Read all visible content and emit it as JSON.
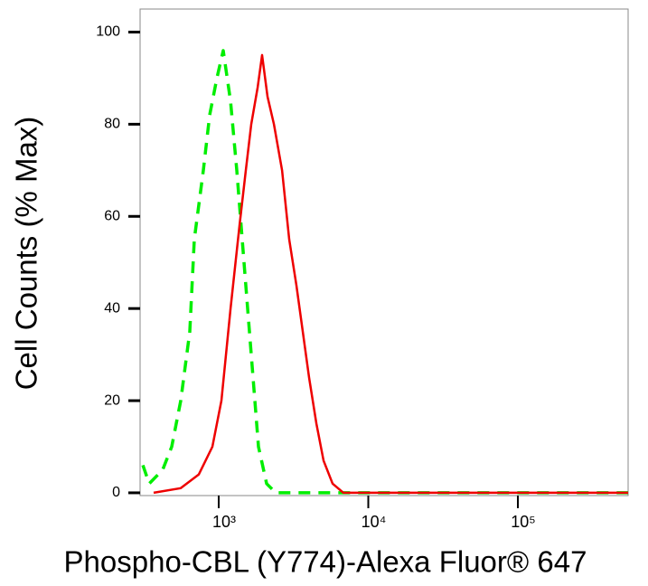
{
  "chart_data": {
    "type": "line",
    "x_label": "Phospho-CBL (Y774)-Alexa Fluor® 647",
    "y_label": "Cell Counts (% Max)",
    "xscale": "log",
    "xlim": [
      298,
      546000
    ],
    "xticks": [
      {
        "value": 1000,
        "label": "10³"
      },
      {
        "value": 10000,
        "label": "10⁴"
      },
      {
        "value": 100000,
        "label": "10⁵"
      }
    ],
    "ylim": [
      -0.6,
      105
    ],
    "yticks": [
      0,
      20,
      40,
      60,
      80,
      100
    ],
    "series": [
      {
        "color": "#00ee00",
        "dash": true,
        "x": [
          311,
          343,
          422,
          485,
          557,
          641,
          687,
          789,
          870,
          973,
          1072,
          1199,
          1321,
          1477,
          1650,
          1845,
          2090,
          2404,
          546000
        ],
        "values": [
          6,
          2,
          5,
          10,
          20,
          35,
          55,
          70,
          82,
          90,
          96,
          85,
          70,
          50,
          30,
          10,
          2,
          0,
          0
        ]
      },
      {
        "color": "#ee0000",
        "dash": false,
        "x": [
          367,
          557,
          736,
          907,
          1043,
          1199,
          1377,
          1517,
          1650,
          1820,
          1950,
          2119,
          2338,
          2650,
          2959,
          3308,
          3647,
          4020,
          4496,
          5023,
          5770,
          6819,
          546000
        ],
        "values": [
          0,
          1,
          4,
          10,
          20,
          40,
          58,
          70,
          80,
          88,
          95,
          86,
          80,
          70,
          55,
          45,
          35,
          25,
          15,
          7,
          2,
          0,
          0
        ]
      }
    ]
  }
}
